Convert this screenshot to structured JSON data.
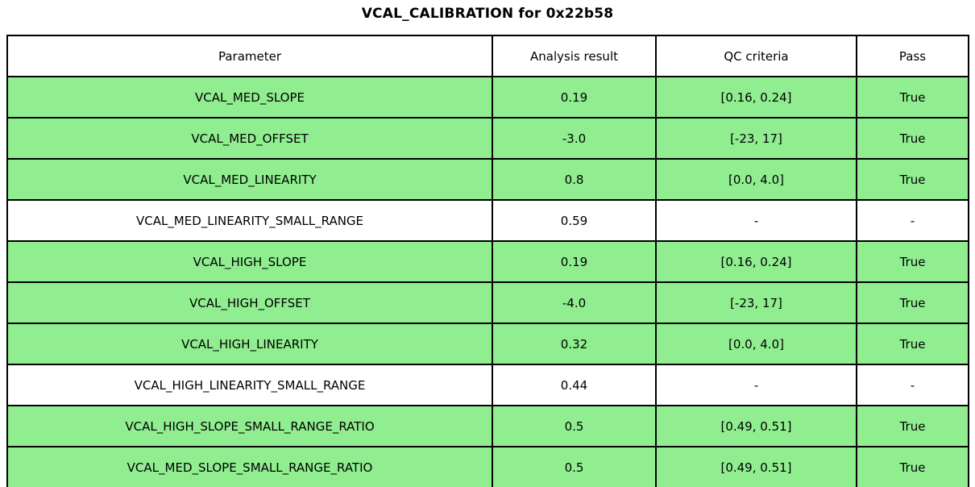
{
  "title": "VCAL_CALIBRATION for 0x22b58",
  "table": {
    "columns": [
      "Parameter",
      "Analysis result",
      "QC criteria",
      "Pass"
    ],
    "rows": [
      {
        "parameter": "VCAL_MED_SLOPE",
        "result": "0.19",
        "criteria": "[0.16, 0.24]",
        "pass": "True",
        "highlight": true
      },
      {
        "parameter": "VCAL_MED_OFFSET",
        "result": "-3.0",
        "criteria": "[-23, 17]",
        "pass": "True",
        "highlight": true
      },
      {
        "parameter": "VCAL_MED_LINEARITY",
        "result": "0.8",
        "criteria": "[0.0, 4.0]",
        "pass": "True",
        "highlight": true
      },
      {
        "parameter": "VCAL_MED_LINEARITY_SMALL_RANGE",
        "result": "0.59",
        "criteria": "-",
        "pass": "-",
        "highlight": false
      },
      {
        "parameter": "VCAL_HIGH_SLOPE",
        "result": "0.19",
        "criteria": "[0.16, 0.24]",
        "pass": "True",
        "highlight": true
      },
      {
        "parameter": "VCAL_HIGH_OFFSET",
        "result": "-4.0",
        "criteria": "[-23, 17]",
        "pass": "True",
        "highlight": true
      },
      {
        "parameter": "VCAL_HIGH_LINEARITY",
        "result": "0.32",
        "criteria": "[0.0, 4.0]",
        "pass": "True",
        "highlight": true
      },
      {
        "parameter": "VCAL_HIGH_LINEARITY_SMALL_RANGE",
        "result": "0.44",
        "criteria": "-",
        "pass": "-",
        "highlight": false
      },
      {
        "parameter": "VCAL_HIGH_SLOPE_SMALL_RANGE_RATIO",
        "result": "0.5",
        "criteria": "[0.49, 0.51]",
        "pass": "True",
        "highlight": true
      },
      {
        "parameter": "VCAL_MED_SLOPE_SMALL_RANGE_RATIO",
        "result": "0.5",
        "criteria": "[0.49, 0.51]",
        "pass": "True",
        "highlight": true
      }
    ]
  },
  "chart_data": {
    "type": "table",
    "title": "VCAL_CALIBRATION for 0x22b58",
    "columns": [
      "Parameter",
      "Analysis result",
      "QC criteria",
      "Pass"
    ],
    "rows": [
      [
        "VCAL_MED_SLOPE",
        "0.19",
        "[0.16, 0.24]",
        "True"
      ],
      [
        "VCAL_MED_OFFSET",
        "-3.0",
        "[-23, 17]",
        "True"
      ],
      [
        "VCAL_MED_LINEARITY",
        "0.8",
        "[0.0, 4.0]",
        "True"
      ],
      [
        "VCAL_MED_LINEARITY_SMALL_RANGE",
        "0.59",
        "-",
        "-"
      ],
      [
        "VCAL_HIGH_SLOPE",
        "0.19",
        "[0.16, 0.24]",
        "True"
      ],
      [
        "VCAL_HIGH_OFFSET",
        "-4.0",
        "[-23, 17]",
        "True"
      ],
      [
        "VCAL_HIGH_LINEARITY",
        "0.32",
        "[0.0, 4.0]",
        "True"
      ],
      [
        "VCAL_HIGH_LINEARITY_SMALL_RANGE",
        "0.44",
        "-",
        "-"
      ],
      [
        "VCAL_HIGH_SLOPE_SMALL_RANGE_RATIO",
        "0.5",
        "[0.49, 0.51]",
        "True"
      ],
      [
        "VCAL_MED_SLOPE_SMALL_RANGE_RATIO",
        "0.5",
        "[0.49, 0.51]",
        "True"
      ]
    ],
    "row_highlighted_green": [
      true,
      true,
      true,
      false,
      true,
      true,
      true,
      false,
      true,
      true
    ],
    "legend_position": "none",
    "grid": true
  },
  "colors": {
    "pass_row_green": "#90EE90",
    "border": "#000000",
    "background": "#FFFFFF"
  }
}
